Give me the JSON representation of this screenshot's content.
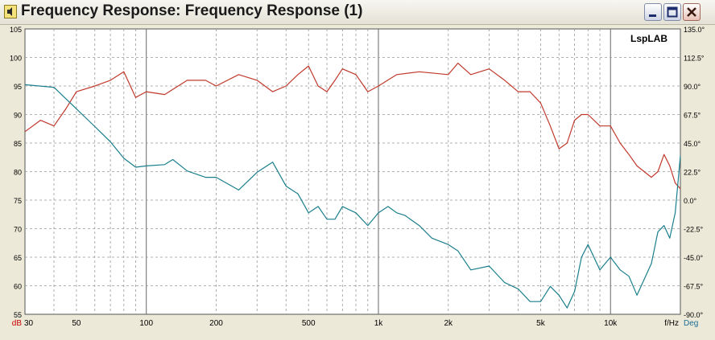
{
  "window": {
    "title": "Frequency Response: Frequency Response (1)",
    "buttons": [
      "minimize",
      "maximize",
      "close"
    ],
    "icon": "speaker-icon"
  },
  "chart_data": {
    "type": "line",
    "title": "",
    "watermark": "LspLAB",
    "x_scale": "log",
    "xlim": [
      30,
      20000
    ],
    "x_ticks": [
      {
        "v": 30,
        "label": "30"
      },
      {
        "v": 50,
        "label": "50"
      },
      {
        "v": 100,
        "label": "100"
      },
      {
        "v": 200,
        "label": "200"
      },
      {
        "v": 500,
        "label": "500"
      },
      {
        "v": 1000,
        "label": "1k"
      },
      {
        "v": 2000,
        "label": "2k"
      },
      {
        "v": 5000,
        "label": "5k"
      },
      {
        "v": 10000,
        "label": "10k"
      }
    ],
    "xlabel": "f/Hz",
    "y_left": {
      "label": "dB",
      "label_color": "#cc0000",
      "range": [
        55,
        105
      ],
      "ticks": [
        55,
        60,
        65,
        70,
        75,
        80,
        85,
        90,
        95,
        100,
        105
      ]
    },
    "y_right": {
      "label": "Deg",
      "label_color": "#1b6e96",
      "range": [
        -90,
        135
      ],
      "ticks": [
        "-90.0°",
        "-67.5°",
        "-45.0°",
        "-22.5°",
        "0.0°",
        "22.5°",
        "45.0°",
        "67.5°",
        "90.0°",
        "112.5°",
        "135.0°"
      ]
    },
    "grid": true,
    "series": [
      {
        "axis": "left",
        "color": "#c0392b",
        "x": [
          30,
          35,
          40,
          45,
          50,
          60,
          70,
          80,
          90,
          100,
          120,
          150,
          180,
          200,
          250,
          300,
          350,
          400,
          450,
          500,
          550,
          600,
          650,
          700,
          800,
          900,
          1000,
          1200,
          1500,
          2000,
          2200,
          2500,
          3000,
          3500,
          4000,
          4500,
          5000,
          5500,
          6000,
          6500,
          7000,
          7500,
          8000,
          9000,
          10000,
          11000,
          12000,
          13000,
          15000,
          16000,
          17000,
          18000,
          19000,
          20000
        ],
        "y": [
          87,
          89,
          88,
          91,
          94,
          95,
          96,
          97.5,
          93,
          94,
          93.5,
          96,
          96,
          95,
          97,
          96,
          94,
          95,
          97,
          98.5,
          95,
          94,
          96,
          98,
          97,
          94,
          95,
          97,
          97.5,
          97,
          99,
          97,
          98,
          96,
          94,
          94,
          92,
          88,
          84,
          85,
          89,
          90,
          90,
          88,
          88,
          85,
          83,
          81,
          79,
          80,
          83,
          81,
          78,
          77
        ]
      },
      {
        "axis": "right",
        "color": "#1a7f8c",
        "x": [
          30,
          40,
          45,
          50,
          60,
          70,
          80,
          90,
          100,
          120,
          130,
          150,
          180,
          200,
          250,
          300,
          350,
          400,
          450,
          500,
          550,
          600,
          650,
          700,
          800,
          900,
          1000,
          1100,
          1200,
          1300,
          1500,
          1700,
          2000,
          2200,
          2500,
          3000,
          3500,
          4000,
          4500,
          5000,
          5500,
          6000,
          6500,
          7000,
          7500,
          8000,
          9000,
          10000,
          11000,
          12000,
          13000,
          15000,
          16000,
          17000,
          18000,
          19000,
          20000
        ],
        "y": [
          91,
          89,
          80,
          72,
          58,
          46,
          33,
          26,
          27,
          28,
          32,
          23,
          18,
          18,
          8,
          22,
          30,
          11,
          5,
          -10,
          -5,
          -15,
          -15,
          -5,
          -10,
          -20,
          -10,
          -5,
          -10,
          -12,
          -20,
          -30,
          -35,
          -40,
          -55,
          -52,
          -65,
          -70,
          -80,
          -80,
          -68,
          -75,
          -85,
          -72,
          -45,
          -35,
          -55,
          -45,
          -55,
          -60,
          -75,
          -50,
          -25,
          -20,
          -30,
          -10,
          35
        ]
      }
    ]
  }
}
